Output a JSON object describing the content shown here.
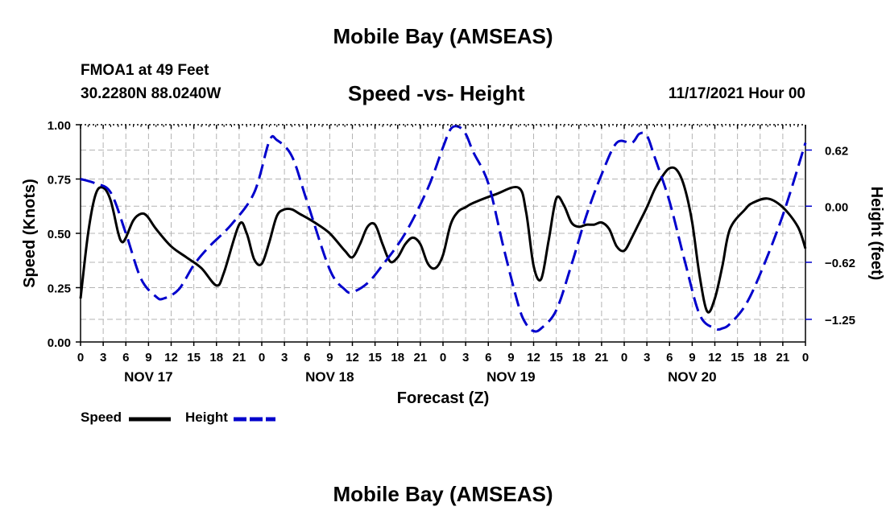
{
  "header": {
    "title": "Mobile Bay (AMSEAS)",
    "station": "FMOA1 at 49 Feet",
    "coords": "30.2280N  88.0240W",
    "subtitle": "Speed -vs- Height",
    "datetime": "11/17/2021 Hour 00"
  },
  "footer": {
    "title": "Mobile Bay (AMSEAS)"
  },
  "legend": {
    "speed_label": "Speed",
    "height_label": "Height"
  },
  "colors": {
    "speed": "#000000",
    "height": "#0000cc",
    "grid": "#b4b4b4"
  },
  "chart_data": {
    "type": "line",
    "title": "Speed -vs- Height",
    "xlabel": "Forecast (Z)",
    "ylabel": "Speed (Knots)",
    "y2label": "Height (feet)",
    "xlim": [
      0,
      96
    ],
    "ylim": [
      0,
      1.0
    ],
    "y2lim": [
      -1.5,
      0.9
    ],
    "x_ticks": [
      0,
      3,
      6,
      9,
      12,
      15,
      18,
      21,
      24,
      27,
      30,
      33,
      36,
      39,
      42,
      45,
      48,
      51,
      54,
      57,
      60,
      63,
      66,
      69,
      72,
      75,
      78,
      81,
      84,
      87,
      90,
      93,
      96
    ],
    "x_tick_labels": [
      "0",
      "3",
      "6",
      "9",
      "12",
      "15",
      "18",
      "21",
      "0",
      "3",
      "6",
      "9",
      "12",
      "15",
      "18",
      "21",
      "0",
      "3",
      "6",
      "9",
      "12",
      "15",
      "18",
      "21",
      "0",
      "3",
      "6",
      "9",
      "12",
      "15",
      "18",
      "21",
      "0"
    ],
    "day_labels": [
      {
        "text": "NOV 17",
        "x": 9
      },
      {
        "text": "NOV 18",
        "x": 33
      },
      {
        "text": "NOV 19",
        "x": 57
      },
      {
        "text": "NOV 20",
        "x": 81
      }
    ],
    "y_ticks": [
      0,
      0.25,
      0.5,
      0.75,
      1.0
    ],
    "y_tick_labels": [
      "0.00",
      "0.25",
      "0.50",
      "0.75",
      "1.00"
    ],
    "y2_ticks": [
      -1.25,
      -0.62,
      0,
      0.62
    ],
    "y2_tick_labels": [
      "−1.25",
      "−0.62",
      "0.00",
      "0.62"
    ],
    "series": [
      {
        "name": "Speed",
        "axis": "left",
        "style": "solid",
        "x": [
          0,
          1,
          2,
          3,
          4,
          5,
          5.5,
          6,
          7,
          8,
          8.8,
          10,
          12,
          14,
          16,
          18,
          19,
          21,
          22,
          23,
          24,
          25,
          26,
          27,
          28,
          29,
          31,
          33,
          35,
          36,
          37,
          38,
          39,
          40,
          41,
          42,
          43,
          44,
          45,
          46,
          47,
          48,
          49,
          50,
          51,
          52,
          55,
          58,
          59,
          60,
          61,
          62,
          63,
          64,
          65,
          66,
          67,
          68,
          69,
          70,
          71,
          72,
          73,
          74,
          75,
          76,
          77,
          78,
          79,
          80,
          81,
          82,
          83,
          84,
          85,
          86,
          88,
          89,
          91,
          93,
          95,
          96
        ],
        "values": [
          0.2,
          0.5,
          0.68,
          0.71,
          0.65,
          0.5,
          0.46,
          0.48,
          0.56,
          0.59,
          0.58,
          0.52,
          0.44,
          0.39,
          0.34,
          0.26,
          0.32,
          0.54,
          0.5,
          0.38,
          0.36,
          0.46,
          0.58,
          0.61,
          0.61,
          0.59,
          0.55,
          0.5,
          0.42,
          0.39,
          0.45,
          0.53,
          0.54,
          0.45,
          0.37,
          0.39,
          0.45,
          0.48,
          0.45,
          0.36,
          0.34,
          0.4,
          0.54,
          0.6,
          0.62,
          0.64,
          0.68,
          0.71,
          0.6,
          0.35,
          0.29,
          0.47,
          0.66,
          0.63,
          0.55,
          0.53,
          0.54,
          0.54,
          0.55,
          0.52,
          0.44,
          0.42,
          0.48,
          0.55,
          0.62,
          0.7,
          0.76,
          0.8,
          0.79,
          0.71,
          0.55,
          0.3,
          0.14,
          0.2,
          0.35,
          0.52,
          0.61,
          0.64,
          0.66,
          0.62,
          0.53,
          0.43
        ]
      },
      {
        "name": "Height",
        "axis": "right",
        "style": "dashed",
        "x": [
          0,
          2,
          4,
          6,
          8,
          10,
          11,
          13,
          15,
          17,
          20,
          23,
          25,
          26,
          28,
          30,
          33,
          35,
          36,
          38,
          40,
          43,
          46,
          48,
          49,
          50,
          51,
          52,
          54,
          56,
          58,
          59,
          60,
          61,
          63,
          65,
          67,
          69,
          71,
          73,
          74,
          75,
          76,
          78,
          80,
          82,
          84,
          85,
          86,
          88,
          90,
          93,
          96
        ],
        "values": [
          0.3,
          0.25,
          0.15,
          -0.3,
          -0.8,
          -1.0,
          -1.02,
          -0.92,
          -0.65,
          -0.45,
          -0.2,
          0.15,
          0.72,
          0.73,
          0.55,
          0.05,
          -0.7,
          -0.92,
          -0.95,
          -0.85,
          -0.65,
          -0.3,
          0.2,
          0.65,
          0.85,
          0.88,
          0.8,
          0.6,
          0.25,
          -0.45,
          -1.1,
          -1.3,
          -1.38,
          -1.35,
          -1.15,
          -0.65,
          -0.1,
          0.35,
          0.7,
          0.7,
          0.8,
          0.78,
          0.55,
          0.05,
          -0.6,
          -1.2,
          -1.35,
          -1.35,
          -1.3,
          -1.1,
          -0.75,
          -0.1,
          0.7
        ]
      }
    ]
  }
}
